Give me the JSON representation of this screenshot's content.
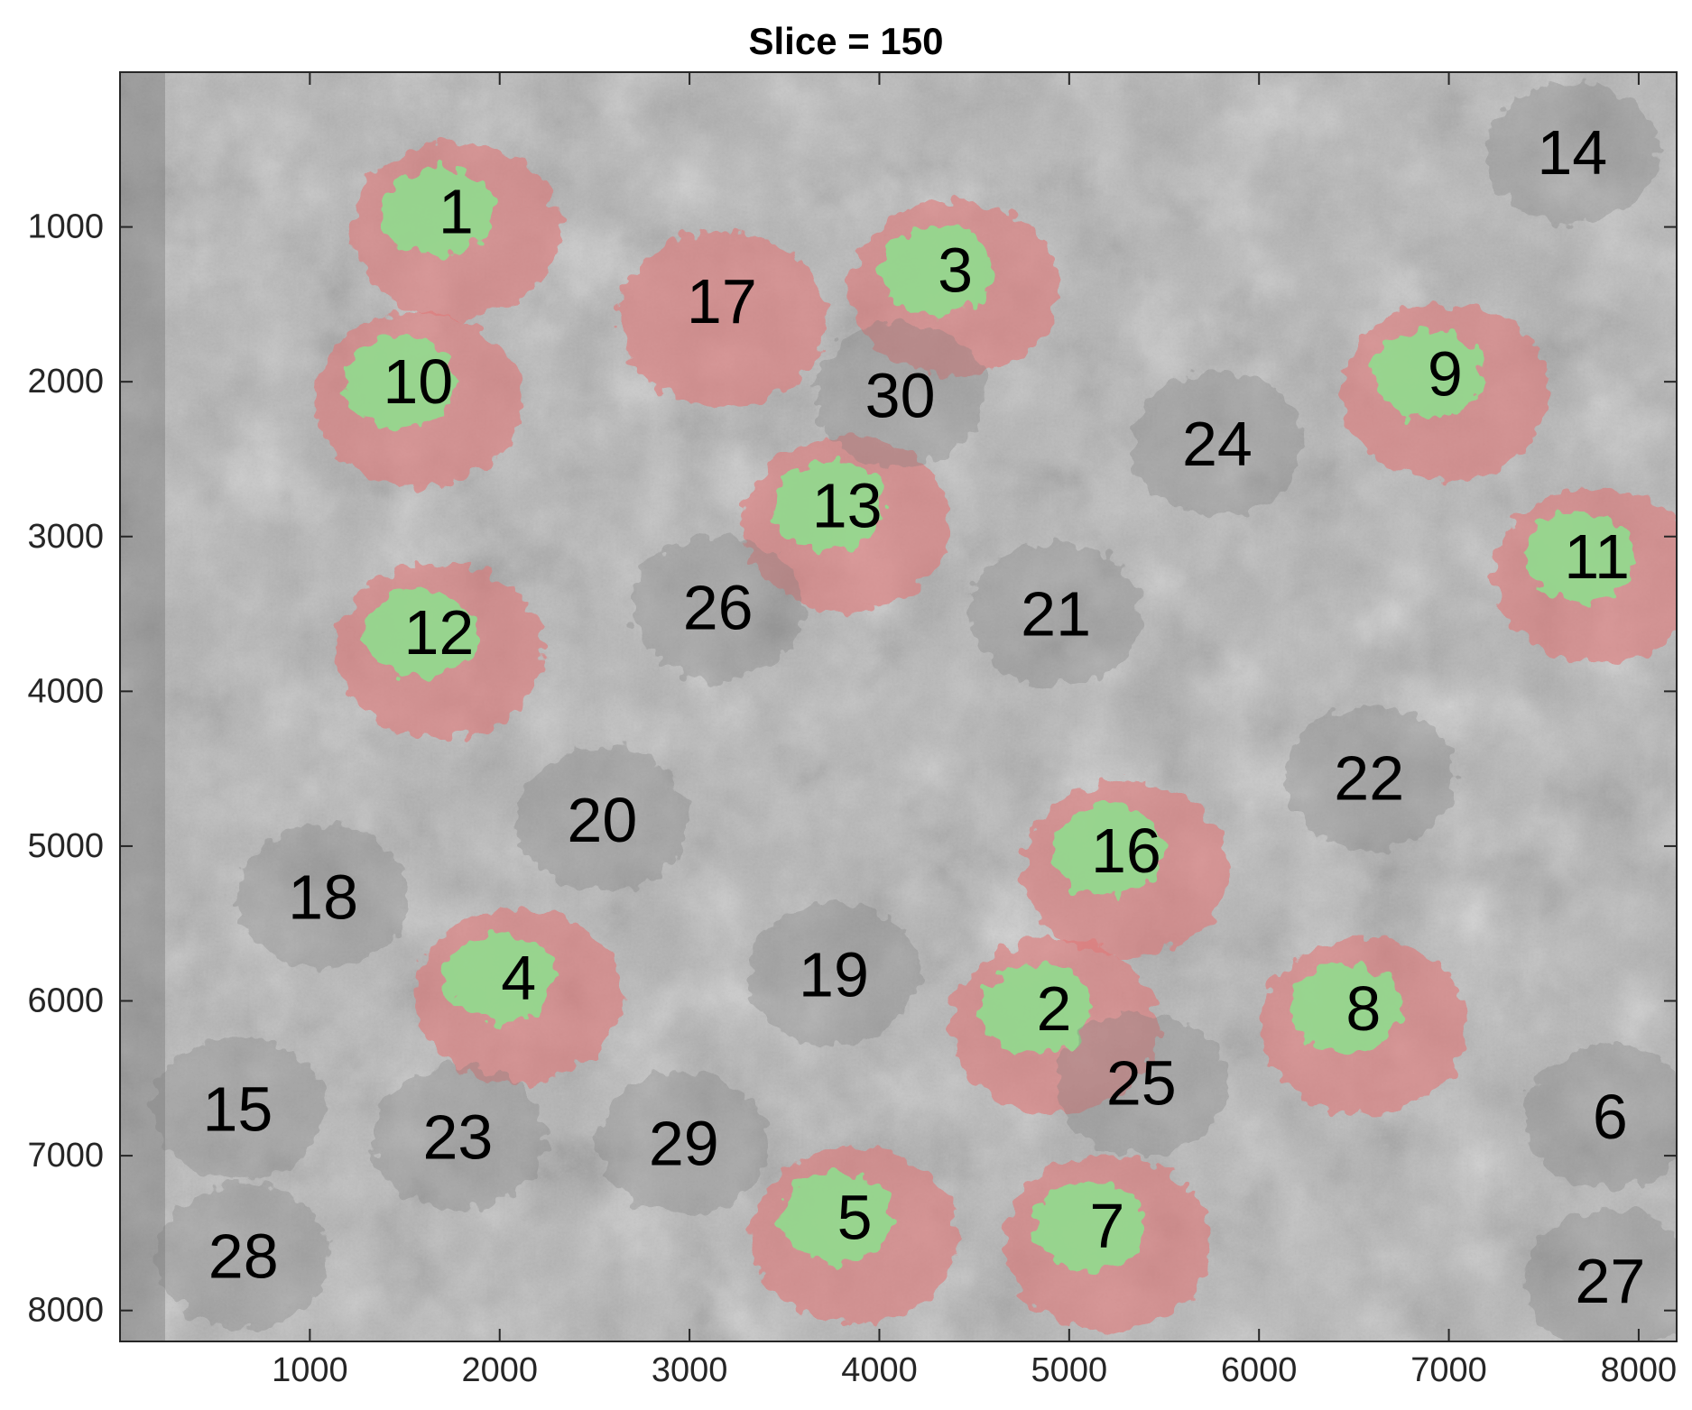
{
  "title": "Slice = 150",
  "axes": {
    "x": {
      "min": 0,
      "max": 8200,
      "ticks": [
        1000,
        2000,
        3000,
        4000,
        5000,
        6000,
        7000,
        8000
      ]
    },
    "y": {
      "min": 0,
      "max": 8200,
      "reversed": true,
      "ticks": [
        1000,
        2000,
        3000,
        4000,
        5000,
        6000,
        7000,
        8000
      ]
    }
  },
  "colors": {
    "background_gray": "#a9a9a9",
    "cell_overlay": "#e07a7a",
    "nucleus_overlay": "#8ee08e",
    "label_text": "#000000"
  },
  "cells": [
    {
      "label": "1",
      "x": 1770,
      "y": 900,
      "segmented": true,
      "nucleus": true
    },
    {
      "label": "2",
      "x": 4920,
      "y": 6050,
      "segmented": true,
      "nucleus": true
    },
    {
      "label": "3",
      "x": 4400,
      "y": 1280,
      "segmented": true,
      "nucleus": true
    },
    {
      "label": "4",
      "x": 2100,
      "y": 5850,
      "segmented": true,
      "nucleus": true
    },
    {
      "label": "5",
      "x": 3870,
      "y": 7400,
      "segmented": true,
      "nucleus": true
    },
    {
      "label": "6",
      "x": 7850,
      "y": 6750,
      "segmented": false,
      "nucleus": false
    },
    {
      "label": "7",
      "x": 5200,
      "y": 7450,
      "segmented": true,
      "nucleus": true
    },
    {
      "label": "8",
      "x": 6550,
      "y": 6050,
      "segmented": true,
      "nucleus": true
    },
    {
      "label": "9",
      "x": 6980,
      "y": 1950,
      "segmented": true,
      "nucleus": true
    },
    {
      "label": "10",
      "x": 1570,
      "y": 2000,
      "segmented": true,
      "nucleus": true
    },
    {
      "label": "11",
      "x": 7780,
      "y": 3130,
      "segmented": true,
      "nucleus": true
    },
    {
      "label": "12",
      "x": 1680,
      "y": 3620,
      "segmented": true,
      "nucleus": true
    },
    {
      "label": "13",
      "x": 3830,
      "y": 2800,
      "segmented": true,
      "nucleus": true
    },
    {
      "label": "14",
      "x": 7650,
      "y": 520,
      "segmented": false,
      "nucleus": false
    },
    {
      "label": "15",
      "x": 620,
      "y": 6700,
      "segmented": false,
      "nucleus": false
    },
    {
      "label": "16",
      "x": 5300,
      "y": 5030,
      "segmented": true,
      "nucleus": true
    },
    {
      "label": "17",
      "x": 3170,
      "y": 1480,
      "segmented": true,
      "nucleus": false
    },
    {
      "label": "18",
      "x": 1070,
      "y": 5330,
      "segmented": false,
      "nucleus": false
    },
    {
      "label": "19",
      "x": 3760,
      "y": 5830,
      "segmented": false,
      "nucleus": false
    },
    {
      "label": "20",
      "x": 2540,
      "y": 4830,
      "segmented": false,
      "nucleus": false
    },
    {
      "label": "21",
      "x": 4930,
      "y": 3500,
      "segmented": false,
      "nucleus": false
    },
    {
      "label": "22",
      "x": 6580,
      "y": 4560,
      "segmented": false,
      "nucleus": false
    },
    {
      "label": "23",
      "x": 1780,
      "y": 6880,
      "segmented": false,
      "nucleus": false
    },
    {
      "label": "24",
      "x": 5780,
      "y": 2400,
      "segmented": false,
      "nucleus": false
    },
    {
      "label": "25",
      "x": 5380,
      "y": 6530,
      "segmented": false,
      "nucleus": false
    },
    {
      "label": "26",
      "x": 3150,
      "y": 3460,
      "segmented": false,
      "nucleus": false
    },
    {
      "label": "27",
      "x": 7850,
      "y": 7810,
      "segmented": false,
      "nucleus": false
    },
    {
      "label": "28",
      "x": 650,
      "y": 7650,
      "segmented": false,
      "nucleus": false
    },
    {
      "label": "29",
      "x": 2970,
      "y": 6920,
      "segmented": false,
      "nucleus": false
    },
    {
      "label": "30",
      "x": 4110,
      "y": 2090,
      "segmented": false,
      "nucleus": false
    }
  ]
}
